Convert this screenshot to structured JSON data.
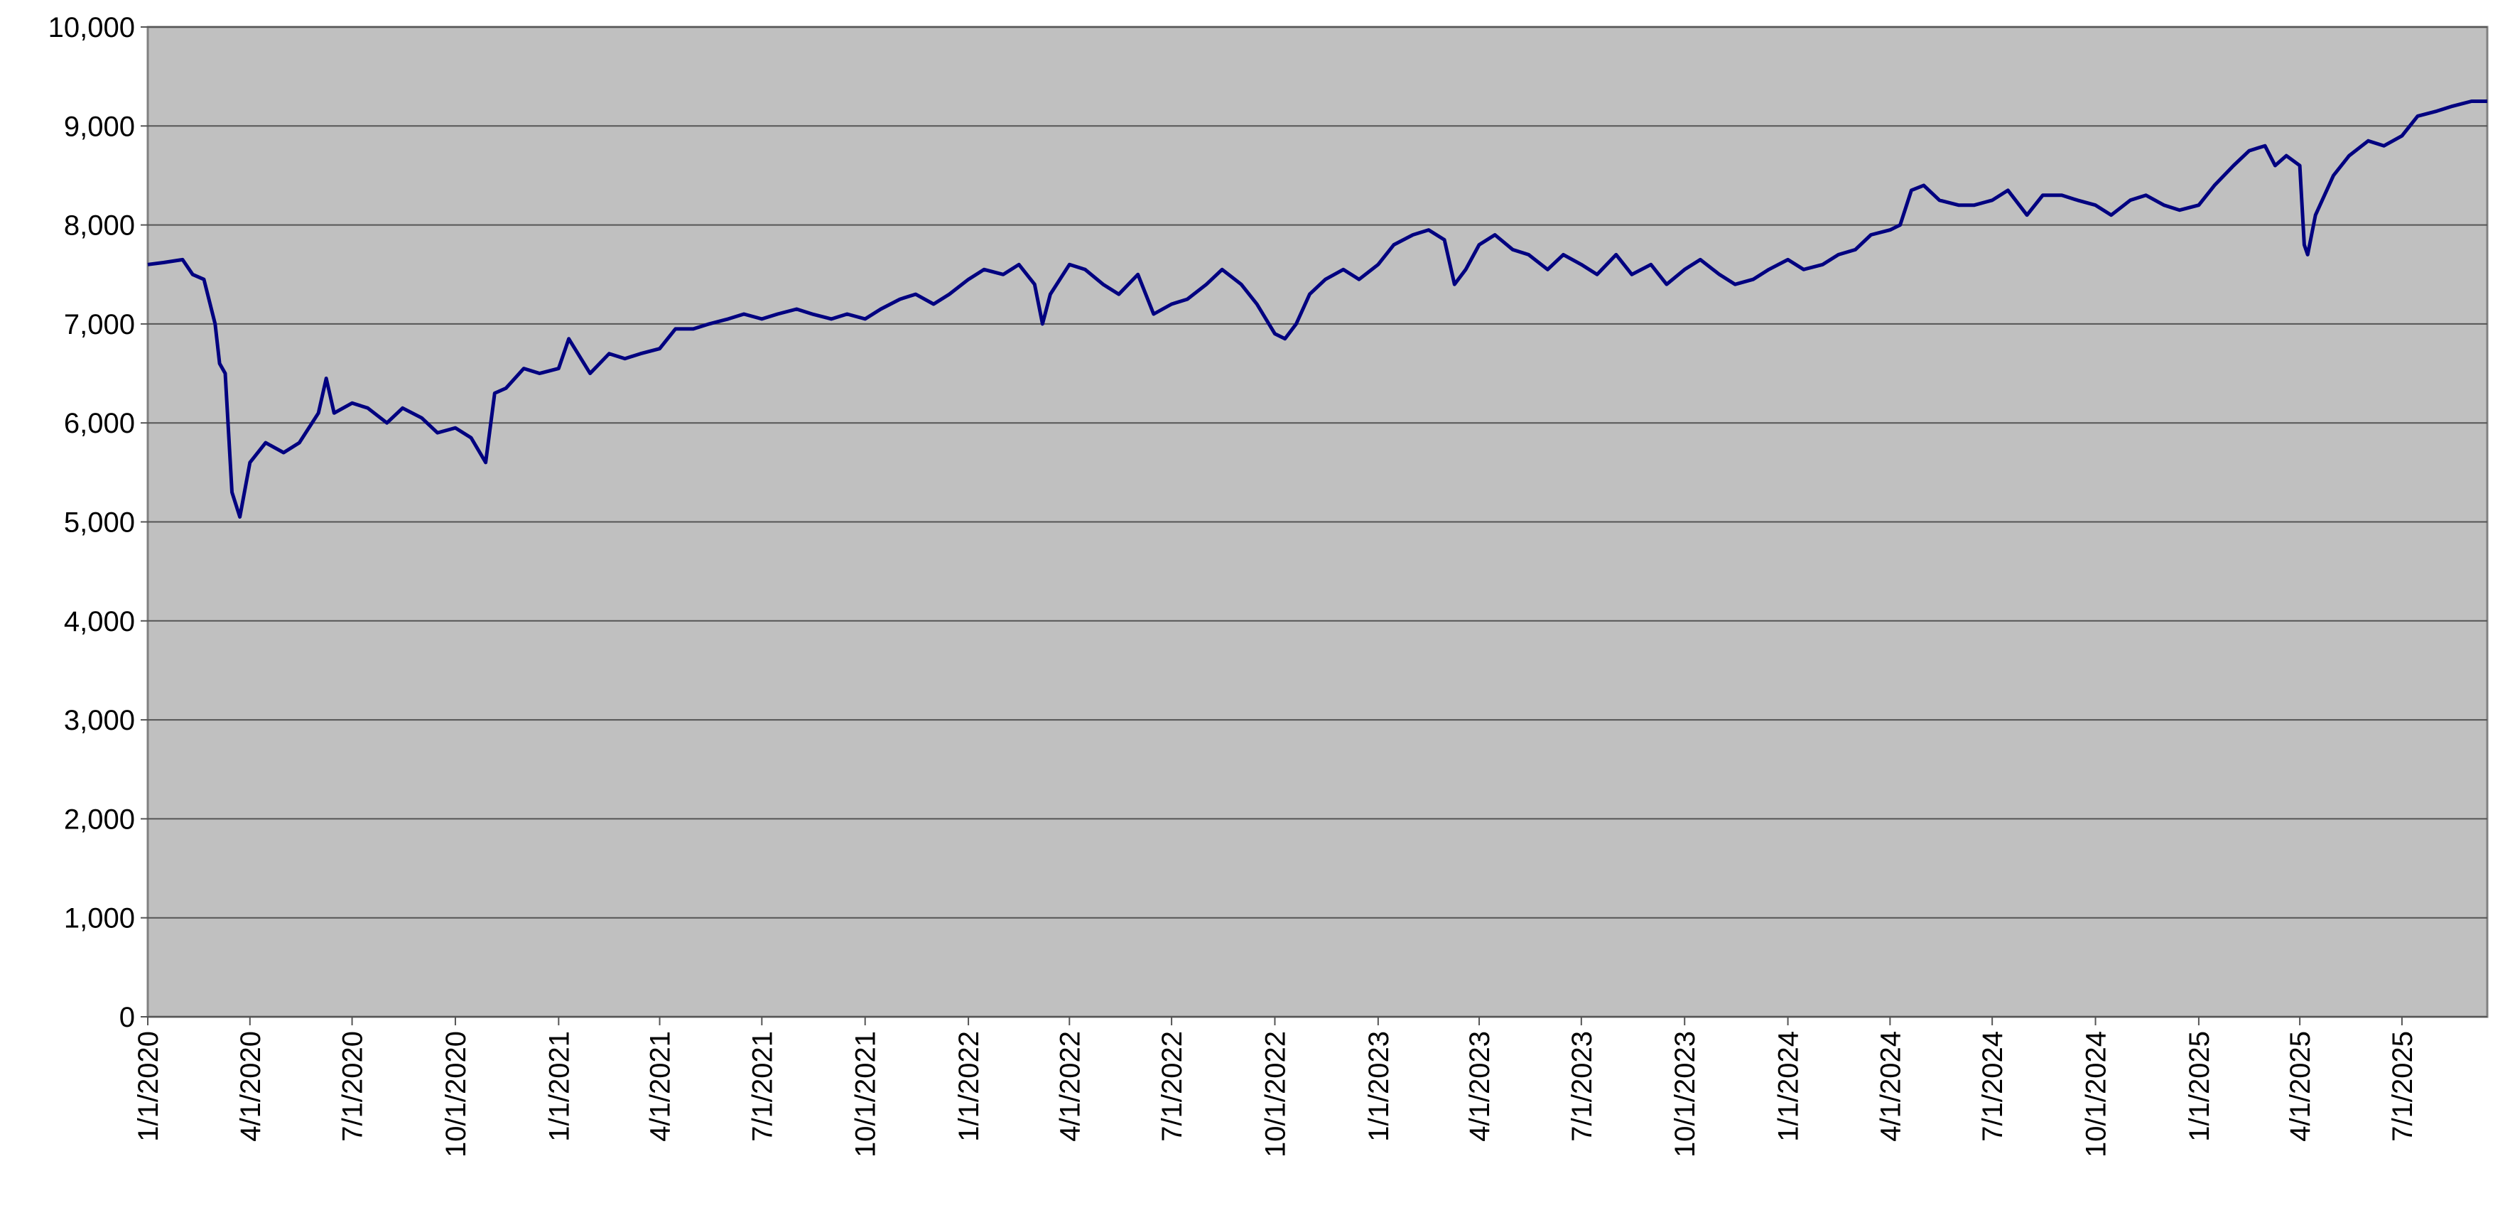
{
  "chart_data": {
    "type": "line",
    "x": [
      "2020-01-01",
      "2020-01-15",
      "2020-02-01",
      "2020-02-10",
      "2020-02-20",
      "2020-03-01",
      "2020-03-05",
      "2020-03-10",
      "2020-03-16",
      "2020-03-23",
      "2020-04-01",
      "2020-04-15",
      "2020-05-01",
      "2020-05-15",
      "2020-06-01",
      "2020-06-08",
      "2020-06-15",
      "2020-07-01",
      "2020-07-15",
      "2020-08-01",
      "2020-08-15",
      "2020-09-01",
      "2020-09-15",
      "2020-10-01",
      "2020-10-15",
      "2020-10-28",
      "2020-11-05",
      "2020-11-15",
      "2020-12-01",
      "2020-12-15",
      "2021-01-01",
      "2021-01-10",
      "2021-01-29",
      "2021-02-15",
      "2021-03-01",
      "2021-03-15",
      "2021-04-01",
      "2021-04-15",
      "2021-05-01",
      "2021-05-15",
      "2021-06-01",
      "2021-06-15",
      "2021-07-01",
      "2021-07-15",
      "2021-08-01",
      "2021-08-15",
      "2021-09-01",
      "2021-09-15",
      "2021-10-01",
      "2021-10-15",
      "2021-11-01",
      "2021-11-15",
      "2021-12-01",
      "2021-12-15",
      "2022-01-01",
      "2022-01-15",
      "2022-02-01",
      "2022-02-15",
      "2022-03-01",
      "2022-03-08",
      "2022-03-15",
      "2022-04-01",
      "2022-04-15",
      "2022-05-01",
      "2022-05-15",
      "2022-06-01",
      "2022-06-15",
      "2022-07-01",
      "2022-07-15",
      "2022-08-01",
      "2022-08-15",
      "2022-09-01",
      "2022-09-15",
      "2022-10-01",
      "2022-10-10",
      "2022-10-20",
      "2022-11-01",
      "2022-11-15",
      "2022-12-01",
      "2022-12-15",
      "2023-01-01",
      "2023-01-15",
      "2023-02-01",
      "2023-02-15",
      "2023-03-01",
      "2023-03-10",
      "2023-03-20",
      "2023-04-01",
      "2023-04-15",
      "2023-05-01",
      "2023-05-15",
      "2023-06-01",
      "2023-06-15",
      "2023-07-01",
      "2023-07-15",
      "2023-08-01",
      "2023-08-15",
      "2023-09-01",
      "2023-09-15",
      "2023-10-01",
      "2023-10-15",
      "2023-11-01",
      "2023-11-15",
      "2023-12-01",
      "2023-12-15",
      "2024-01-01",
      "2024-01-15",
      "2024-02-01",
      "2024-02-15",
      "2024-03-01",
      "2024-03-15",
      "2024-04-01",
      "2024-04-10",
      "2024-04-20",
      "2024-05-01",
      "2024-05-15",
      "2024-06-01",
      "2024-06-15",
      "2024-07-01",
      "2024-07-15",
      "2024-08-01",
      "2024-08-15",
      "2024-09-01",
      "2024-09-15",
      "2024-10-01",
      "2024-10-15",
      "2024-11-01",
      "2024-11-15",
      "2024-12-01",
      "2024-12-15",
      "2025-01-01",
      "2025-01-15",
      "2025-02-01",
      "2025-02-15",
      "2025-03-01",
      "2025-03-10",
      "2025-03-20",
      "2025-04-01",
      "2025-04-05",
      "2025-04-08",
      "2025-04-15",
      "2025-05-01",
      "2025-05-15",
      "2025-06-01",
      "2025-06-15",
      "2025-07-01",
      "2025-07-15",
      "2025-08-01",
      "2025-08-15",
      "2025-09-01",
      "2025-09-15"
    ],
    "series": [
      {
        "color": "#000080",
        "values": [
          7600,
          7620,
          7650,
          7500,
          7450,
          7000,
          6600,
          6500,
          5300,
          5050,
          5600,
          5800,
          5700,
          5800,
          6100,
          6450,
          6100,
          6200,
          6150,
          6000,
          6150,
          6050,
          5900,
          5950,
          5850,
          5600,
          6300,
          6350,
          6550,
          6500,
          6550,
          6850,
          6500,
          6700,
          6650,
          6700,
          6750,
          6950,
          6950,
          7000,
          7050,
          7100,
          7050,
          7100,
          7150,
          7100,
          7050,
          7100,
          7050,
          7150,
          7250,
          7300,
          7200,
          7300,
          7450,
          7550,
          7500,
          7600,
          7400,
          7000,
          7300,
          7600,
          7550,
          7400,
          7300,
          7500,
          7100,
          7200,
          7250,
          7400,
          7550,
          7400,
          7200,
          6900,
          6850,
          7000,
          7300,
          7450,
          7550,
          7450,
          7600,
          7800,
          7900,
          7950,
          7850,
          7400,
          7550,
          7800,
          7900,
          7750,
          7700,
          7550,
          7700,
          7600,
          7500,
          7700,
          7500,
          7600,
          7400,
          7550,
          7650,
          7500,
          7400,
          7450,
          7550,
          7650,
          7550,
          7600,
          7700,
          7750,
          7900,
          7950,
          8000,
          8350,
          8400,
          8250,
          8200,
          8200,
          8250,
          8350,
          8100,
          8300,
          8300,
          8250,
          8200,
          8100,
          8250,
          8300,
          8200,
          8150,
          8200,
          8400,
          8600,
          8750,
          8800,
          8600,
          8700,
          8600,
          7800,
          7700,
          8100,
          8500,
          8700,
          8850,
          8800,
          8900,
          9100,
          9150,
          9200,
          9250,
          9250
        ]
      }
    ],
    "xlim": [
      "2020-01-01",
      "2025-09-15"
    ],
    "xticks": [
      "1/1/2020",
      "4/1/2020",
      "7/1/2020",
      "10/1/2020",
      "1/1/2021",
      "4/1/2021",
      "7/1/2021",
      "10/1/2021",
      "1/1/2022",
      "4/1/2022",
      "7/1/2022",
      "10/1/2022",
      "1/1/2023",
      "4/1/2023",
      "7/1/2023",
      "10/1/2023",
      "1/1/2024",
      "4/1/2024",
      "7/1/2024",
      "10/1/2024",
      "1/1/2025",
      "4/1/2025",
      "7/1/2025"
    ],
    "ylim": [
      0,
      10000
    ],
    "yticks": [
      0,
      {
        "value": 1000,
        "label": "1,000"
      },
      {
        "value": 2000,
        "label": "2,000"
      },
      {
        "value": 3000,
        "label": "3,000"
      },
      {
        "value": 4000,
        "label": "4,000"
      },
      {
        "value": 5000,
        "label": "5,000"
      },
      {
        "value": 6000,
        "label": "6,000"
      },
      {
        "value": 7000,
        "label": "7,000"
      },
      {
        "value": 8000,
        "label": "8,000"
      },
      {
        "value": 9000,
        "label": "9,000"
      },
      {
        "value": 10000,
        "label": "10,000"
      }
    ],
    "grid": true
  }
}
